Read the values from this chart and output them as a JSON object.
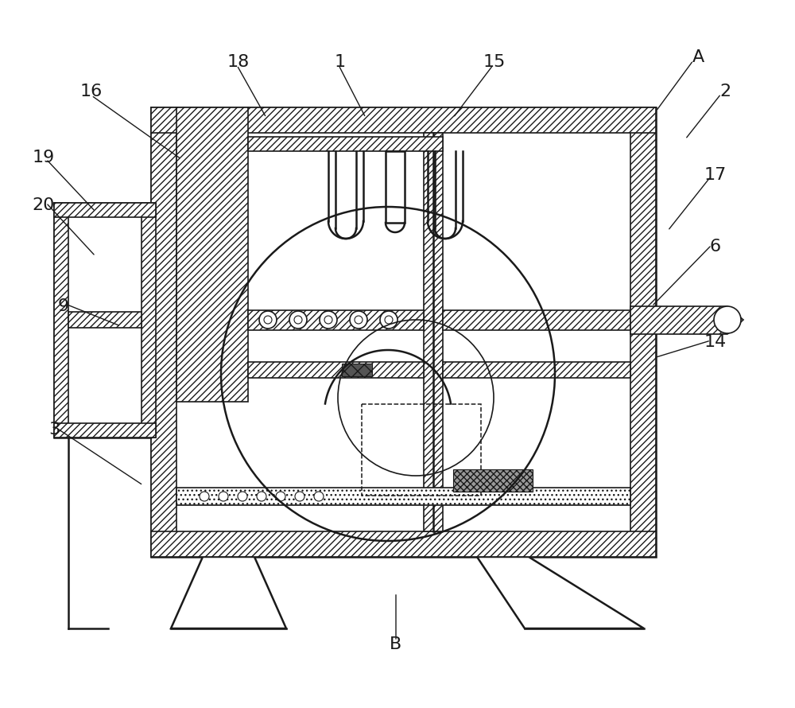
{
  "bg_color": "#ffffff",
  "lc": "#1a1a1a",
  "figsize": [
    10.0,
    8.9
  ],
  "dpi": 100,
  "labels": [
    [
      "16",
      115,
      115
    ],
    [
      "18",
      300,
      78
    ],
    [
      "1",
      428,
      78
    ],
    [
      "15",
      622,
      78
    ],
    [
      "A",
      878,
      72
    ],
    [
      "2",
      912,
      115
    ],
    [
      "19",
      55,
      198
    ],
    [
      "20",
      55,
      258
    ],
    [
      "17",
      900,
      220
    ],
    [
      "6",
      900,
      310
    ],
    [
      "9",
      80,
      385
    ],
    [
      "14",
      900,
      430
    ],
    [
      "3",
      68,
      540
    ],
    [
      "B",
      498,
      810
    ]
  ],
  "leader_lines": [
    [
      115,
      120,
      228,
      200
    ],
    [
      298,
      82,
      335,
      148
    ],
    [
      426,
      82,
      460,
      148
    ],
    [
      620,
      82,
      570,
      148
    ],
    [
      872,
      76,
      825,
      140
    ],
    [
      907,
      118,
      862,
      175
    ],
    [
      58,
      200,
      120,
      266
    ],
    [
      58,
      255,
      120,
      322
    ],
    [
      894,
      222,
      840,
      290
    ],
    [
      895,
      308,
      820,
      385
    ],
    [
      82,
      382,
      152,
      410
    ],
    [
      894,
      428,
      822,
      450
    ],
    [
      71,
      538,
      180,
      610
    ],
    [
      498,
      806,
      498,
      745
    ]
  ]
}
